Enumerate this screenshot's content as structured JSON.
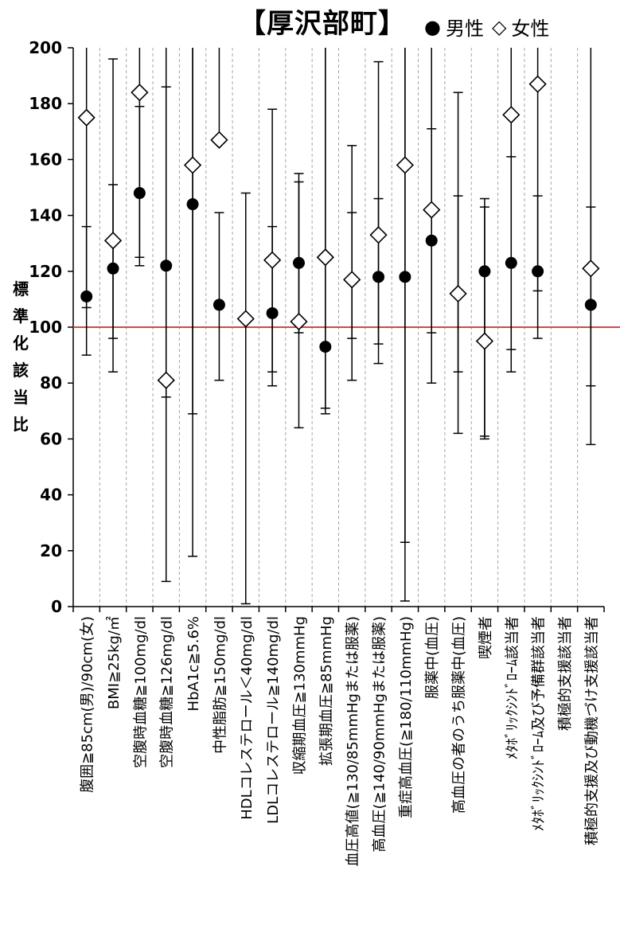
{
  "title": "【厚沢部町】",
  "legend": {
    "male": "男性",
    "female": "女性",
    "male_marker": "●",
    "female_marker": "◇"
  },
  "colors": {
    "reference_line": "#c0504d",
    "marker": "#000000",
    "grid": "#a6a6a6"
  },
  "chart_data": {
    "type": "scatter",
    "title": "【厚沢部町】",
    "xlabel": "",
    "ylabel": "標準化該当比",
    "ylabel_chars": [
      "標",
      "準",
      "化",
      "該",
      "当",
      "比"
    ],
    "ylim": [
      0,
      200
    ],
    "yticks": [
      0,
      20,
      40,
      60,
      80,
      100,
      120,
      140,
      160,
      180,
      200
    ],
    "reference_line": 100,
    "grid": "vertical dashed",
    "legend_position": "top-right",
    "categories": [
      "腹囲≧85cm(男)/90cm(女)",
      "BMI≧25kg/㎡",
      "空腹時血糖≧100mg/dl",
      "空腹時血糖≧126mg/dl",
      "HbA1c≧5.6%",
      "中性脂肪≧150mg/dl",
      "HDLコレステロール＜40mg/dl",
      "LDLコレステロール≧140mg/dl",
      "収縮期血圧≧130mmHg",
      "拡張期血圧≧85mmHg",
      "血圧高値(≧130/85mmHgまたは服薬)",
      "高血圧(≧140/90mmHgまたは服薬)",
      "重症高血圧(≧180/110mmHg)",
      "服薬中(血圧)",
      "高血圧の者のうち服薬中(血圧)",
      "喫煙者",
      "ﾒﾀﾎﾞﾘｯｸｼﾝﾄﾞﾛｰﾑ該当者",
      "ﾒﾀﾎﾞﾘｯｸｼﾝﾄﾞﾛｰﾑ及び予備群該当者",
      "積極的支援該当者",
      "積極的支援及び動機づけ支援該当者"
    ],
    "series": [
      {
        "name": "男性",
        "marker": "filled-circle",
        "values": [
          111,
          121,
          148,
          122,
          144,
          108,
          null,
          105,
          123,
          93,
          117,
          118,
          118,
          131,
          112,
          120,
          123,
          120,
          null,
          108
        ],
        "ci_low": [
          90,
          84,
          122,
          75,
          69,
          81,
          1,
          79,
          98,
          69,
          81,
          87,
          2,
          80,
          62,
          61,
          84,
          96,
          null,
          58
        ],
        "ci_high": [
          136,
          151,
          179,
          186,
          200,
          141,
          148,
          136,
          152,
          200,
          141,
          146,
          200,
          171,
          147,
          143,
          161,
          147,
          null,
          143
        ]
      },
      {
        "name": "女性",
        "marker": "open-diamond",
        "values": [
          175,
          131,
          184,
          81,
          158,
          167,
          103,
          124,
          102,
          125,
          117,
          133,
          158,
          142,
          112,
          95,
          176,
          187,
          null,
          121
        ],
        "ci_low": [
          107,
          96,
          125,
          9,
          18,
          null,
          null,
          84,
          64,
          71,
          96,
          94,
          23,
          98,
          84,
          60,
          92,
          113,
          null,
          79
        ],
        "ci_high": [
          200,
          196,
          200,
          200,
          200,
          200,
          null,
          178,
          155,
          200,
          165,
          195,
          200,
          200,
          184,
          146,
          200,
          200,
          null,
          200
        ]
      }
    ]
  }
}
